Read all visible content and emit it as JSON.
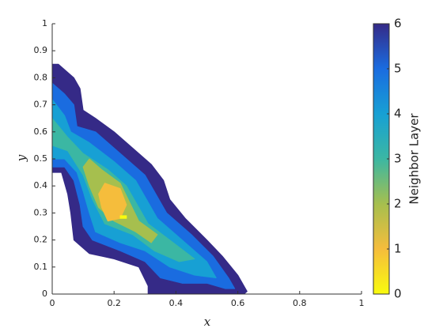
{
  "chart_data": {
    "type": "filled-contour",
    "xlabel": "x",
    "ylabel": "y",
    "xlim": [
      0,
      1
    ],
    "xticks": [
      0,
      0.2,
      0.4,
      0.6,
      0.8,
      1
    ],
    "ylim": [
      0,
      1
    ],
    "yticks": [
      0,
      0.1,
      0.2,
      0.3,
      0.4,
      0.5,
      0.6,
      0.7,
      0.8,
      0.9,
      1
    ],
    "colorbar": {
      "label": "Neighbor Layer",
      "clim": [
        0,
        6
      ],
      "ticks": [
        0,
        1,
        2,
        3,
        4,
        5,
        6
      ],
      "colors": [
        "#f9fb0e",
        "#f5bd3c",
        "#a6bf4e",
        "#3bb7a3",
        "#17a0d4",
        "#1a6ce0",
        "#352a87"
      ]
    },
    "regions": [
      {
        "level": 6,
        "x": [
          0,
          0.02,
          0.07,
          0.09,
          0.1,
          0.14,
          0.2,
          0.25,
          0.32,
          0.36,
          0.38,
          0.43,
          0.5,
          0.55,
          0.6,
          0.63,
          0.62,
          0.31,
          0.31,
          0.28,
          0.2,
          0.12,
          0.07,
          0.06,
          0.05,
          0.03,
          0
        ],
        "y": [
          0.85,
          0.85,
          0.8,
          0.76,
          0.68,
          0.65,
          0.6,
          0.55,
          0.48,
          0.42,
          0.35,
          0.28,
          0.2,
          0.14,
          0.07,
          0.01,
          0,
          0,
          0.03,
          0.1,
          0.13,
          0.15,
          0.2,
          0.3,
          0.37,
          0.45,
          0.45
        ]
      },
      {
        "level": 5,
        "x": [
          0,
          0.04,
          0.07,
          0.08,
          0.14,
          0.22,
          0.3,
          0.34,
          0.37,
          0.45,
          0.52,
          0.57,
          0.59,
          0.56,
          0.5,
          0.42,
          0.35,
          0.3,
          0.22,
          0.13,
          0.1,
          0.09,
          0.07,
          0.04,
          0
        ],
        "y": [
          0.78,
          0.74,
          0.7,
          0.62,
          0.6,
          0.52,
          0.44,
          0.36,
          0.3,
          0.22,
          0.14,
          0.06,
          0.02,
          0.02,
          0.04,
          0.04,
          0.06,
          0.12,
          0.16,
          0.2,
          0.25,
          0.33,
          0.42,
          0.47,
          0.47
        ]
      },
      {
        "level": 4,
        "x": [
          0,
          0.04,
          0.06,
          0.12,
          0.2,
          0.27,
          0.31,
          0.34,
          0.42,
          0.5,
          0.53,
          0.46,
          0.38,
          0.3,
          0.22,
          0.14,
          0.12,
          0.1,
          0.08,
          0.04,
          0
        ],
        "y": [
          0.72,
          0.66,
          0.6,
          0.56,
          0.49,
          0.42,
          0.34,
          0.28,
          0.2,
          0.12,
          0.06,
          0.07,
          0.1,
          0.16,
          0.19,
          0.23,
          0.3,
          0.38,
          0.45,
          0.5,
          0.5
        ]
      },
      {
        "level": 3,
        "x": [
          0,
          0.05,
          0.1,
          0.18,
          0.24,
          0.28,
          0.31,
          0.38,
          0.46,
          0.41,
          0.33,
          0.26,
          0.17,
          0.13,
          0.1,
          0.05,
          0
        ],
        "y": [
          0.65,
          0.58,
          0.52,
          0.46,
          0.4,
          0.32,
          0.26,
          0.2,
          0.13,
          0.12,
          0.16,
          0.22,
          0.26,
          0.35,
          0.44,
          0.53,
          0.55
        ]
      },
      {
        "level": 2,
        "x": [
          0.12,
          0.16,
          0.22,
          0.25,
          0.28,
          0.34,
          0.32,
          0.27,
          0.2,
          0.15,
          0.12,
          0.1
        ],
        "y": [
          0.5,
          0.46,
          0.41,
          0.34,
          0.27,
          0.22,
          0.19,
          0.23,
          0.27,
          0.32,
          0.4,
          0.47
        ]
      },
      {
        "level": 1,
        "x": [
          0.17,
          0.22,
          0.24,
          0.22,
          0.18,
          0.16,
          0.15
        ],
        "y": [
          0.41,
          0.39,
          0.33,
          0.28,
          0.27,
          0.32,
          0.37
        ]
      },
      {
        "level": 0,
        "x": [
          0.22,
          0.24,
          0.24,
          0.22
        ],
        "y": [
          0.29,
          0.29,
          0.28,
          0.28
        ]
      }
    ]
  }
}
